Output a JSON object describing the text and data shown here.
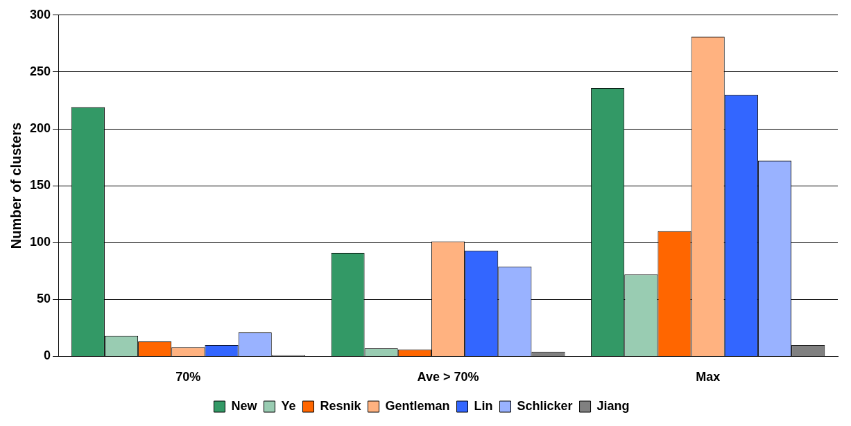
{
  "chart_data": {
    "type": "bar",
    "ylabel": "Number of clusters",
    "categories": [
      "70%",
      "Ave > 70%",
      "Max"
    ],
    "series": [
      {
        "name": "New",
        "color": "#339966",
        "values": [
          219,
          91,
          236
        ]
      },
      {
        "name": "Ye",
        "color": "#99ccb2",
        "values": [
          18,
          7,
          72
        ]
      },
      {
        "name": "Resnik",
        "color": "#ff6600",
        "values": [
          13,
          6,
          110
        ]
      },
      {
        "name": "Gentleman",
        "color": "#ffb280",
        "values": [
          8,
          101,
          281
        ]
      },
      {
        "name": "Lin",
        "color": "#3366ff",
        "values": [
          10,
          93,
          230
        ]
      },
      {
        "name": "Schlicker",
        "color": "#99b2ff",
        "values": [
          21,
          79,
          172
        ]
      },
      {
        "name": "Jiang",
        "color": "#808080",
        "values": [
          1,
          4,
          10
        ]
      }
    ],
    "ylim": [
      0,
      300
    ],
    "yticks": [
      0,
      50,
      100,
      150,
      200,
      250,
      300
    ],
    "grid": "y",
    "legend": "bottom"
  }
}
